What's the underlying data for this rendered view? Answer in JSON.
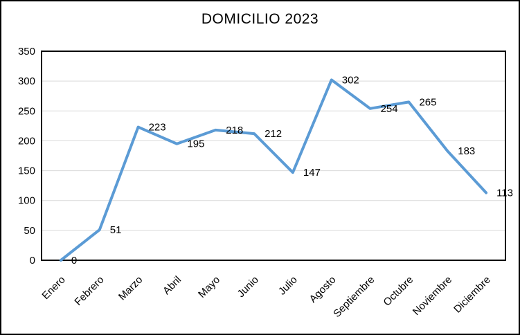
{
  "chart_data": {
    "type": "line",
    "title": "DOMICILIO 2023",
    "categories": [
      "Enero",
      "Febrero",
      "Marzo",
      "Abril",
      "Mayo",
      "Junio",
      "Julio",
      "Agosto",
      "Septiembre",
      "Octubre",
      "Noviembre",
      "Diciembre"
    ],
    "values": [
      0,
      51,
      223,
      195,
      218,
      212,
      147,
      302,
      254,
      265,
      183,
      113
    ],
    "xlabel": "",
    "ylabel": "",
    "ylim": [
      0,
      350
    ],
    "ytick_step": 50,
    "ytick_labels": [
      "0",
      "50",
      "100",
      "150",
      "200",
      "250",
      "300",
      "350"
    ],
    "grid": true,
    "legend_position": "none",
    "data_labels": true,
    "x_label_rotation": -45,
    "colors": {
      "line": "#5B9BD5",
      "gridline": "#D9D9D9",
      "axis_border": "#000000",
      "text": "#000000",
      "background": "#FFFFFF"
    }
  }
}
